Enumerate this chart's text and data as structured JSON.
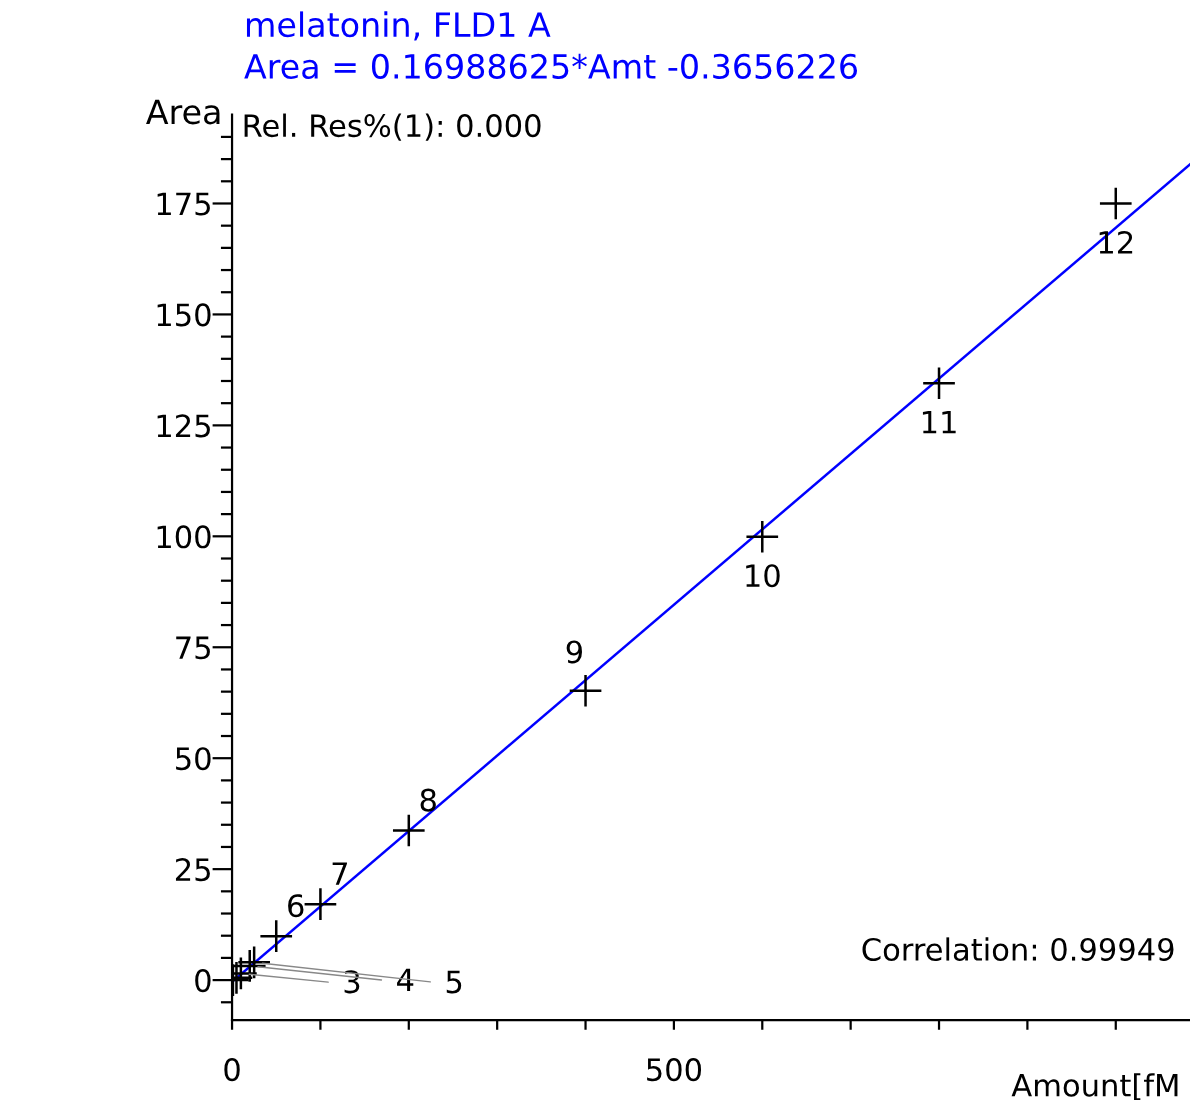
{
  "chart_data": {
    "type": "scatter",
    "title": "melatonin, FLD1 A",
    "subtitle": "Area = 0.16988625*Amt -0.3656226",
    "xlabel": "Amount[fM",
    "ylabel": "Area",
    "series": [
      {
        "color": "#000000",
        "marker": "cross",
        "x": [
          1,
          5,
          10,
          20,
          25,
          50,
          100,
          200,
          400,
          600,
          800,
          1000
        ],
        "values": [
          0,
          0.5,
          1.5,
          3.2,
          4,
          9.9,
          17.1,
          33.7,
          65.2,
          99.9,
          134.5,
          175
        ]
      },
      {
        "type": "line",
        "color": "#0000ff",
        "marker": "none",
        "x": [
          0,
          1084
        ],
        "values": [
          -0.4,
          183.8
        ]
      }
    ],
    "xlim": [
      0,
      1084
    ],
    "ylim": [
      -9,
      195
    ],
    "xticks": [
      0,
      {
        "value": 100,
        "label": null
      },
      {
        "value": 200,
        "label": null
      },
      {
        "value": 300,
        "label": null
      },
      {
        "value": 400,
        "label": null
      },
      500,
      {
        "value": 600,
        "label": null
      },
      {
        "value": 700,
        "label": null
      },
      {
        "value": 800,
        "label": null
      },
      {
        "value": 900,
        "label": null
      },
      {
        "value": 1000,
        "label": null
      }
    ],
    "yticks": [
      {
        "value": -5,
        "label": null
      },
      0,
      {
        "value": 5,
        "label": null
      },
      {
        "value": 10,
        "label": null
      },
      {
        "value": 15,
        "label": null
      },
      {
        "value": 20,
        "label": null
      },
      25,
      {
        "value": 30,
        "label": null
      },
      {
        "value": 35,
        "label": null
      },
      {
        "value": 40,
        "label": null
      },
      {
        "value": 45,
        "label": null
      },
      50,
      {
        "value": 55,
        "label": null
      },
      {
        "value": 60,
        "label": null
      },
      {
        "value": 65,
        "label": null
      },
      {
        "value": 70,
        "label": null
      },
      75,
      {
        "value": 80,
        "label": null
      },
      {
        "value": 85,
        "label": null
      },
      {
        "value": 90,
        "label": null
      },
      {
        "value": 95,
        "label": null
      },
      100,
      {
        "value": 105,
        "label": null
      },
      {
        "value": 110,
        "label": null
      },
      {
        "value": 115,
        "label": null
      },
      {
        "value": 120,
        "label": null
      },
      125,
      {
        "value": 130,
        "label": null
      },
      {
        "value": 135,
        "label": null
      },
      {
        "value": 140,
        "label": null
      },
      {
        "value": 145,
        "label": null
      },
      150,
      {
        "value": 155,
        "label": null
      },
      {
        "value": 160,
        "label": null
      },
      {
        "value": 165,
        "label": null
      },
      {
        "value": 170,
        "label": null
      },
      175,
      {
        "value": 180,
        "label": null
      },
      {
        "value": 185,
        "label": null
      },
      {
        "value": 190,
        "label": null
      }
    ],
    "grid": false,
    "legend": false,
    "annotations": [
      "Rel. Res%(1): 0.000",
      "Correlation: 0.99949",
      {
        "text": "3",
        "x": 10,
        "y": 1.5
      },
      {
        "text": "4",
        "x": 20,
        "y": 3.2
      },
      {
        "text": "5",
        "x": 25,
        "y": 4
      },
      {
        "text": "6",
        "x": 50,
        "y": 9.9
      },
      {
        "text": "7",
        "x": 100,
        "y": 17.1
      },
      {
        "text": "8",
        "x": 200,
        "y": 33.7
      },
      {
        "text": "9",
        "x": 400,
        "y": 65.2
      },
      {
        "text": "10",
        "x": 600,
        "y": 99.9
      },
      {
        "text": "11",
        "x": 800,
        "y": 134.5
      },
      {
        "text": "12",
        "x": 1000,
        "y": 175
      }
    ]
  }
}
